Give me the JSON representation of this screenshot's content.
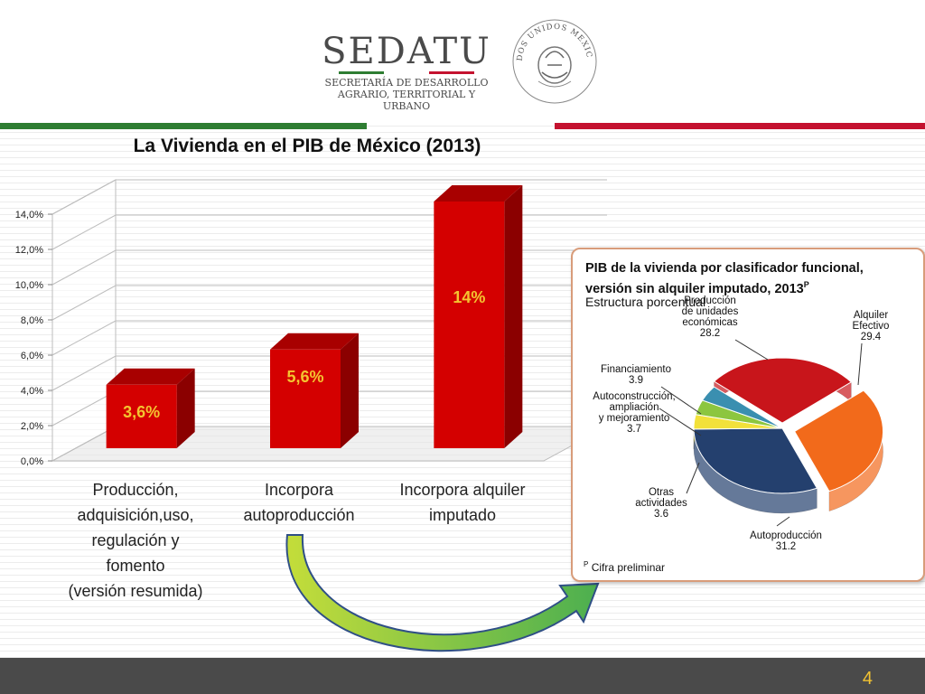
{
  "header": {
    "logo_name": "SEDATU",
    "logo_line1": "SECRETARÍA DE DESARROLLO",
    "logo_line2": "AGRARIO, TERRITORIAL Y URBANO",
    "seal_text": "ESTADOS UNIDOS MEXICANOS"
  },
  "colors": {
    "green": "#2e7d32",
    "red": "#c4122f",
    "bar": "#d40000",
    "bar_label": "#f4c430"
  },
  "page_number": "4",
  "chart_data": [
    {
      "type": "bar",
      "title": "La Vivienda en el PIB de México (2013)",
      "categories": [
        "Producción, adquisición,uso, regulación y fomento (versión resumida)",
        "Incorpora autoproducción",
        "Incorpora alquiler imputado"
      ],
      "category_lines": [
        [
          "Producción,",
          "adquisición,uso,",
          "regulación y",
          "fomento",
          "(versión resumida)"
        ],
        [
          "Incorpora",
          "autoproducción"
        ],
        [
          "Incorpora alquiler",
          "imputado"
        ]
      ],
      "values": [
        3.6,
        5.6,
        14
      ],
      "data_labels": [
        "3,6%",
        "5,6%",
        "14%"
      ],
      "yticks": [
        "0,0%",
        "2,0%",
        "4,0%",
        "6,0%",
        "8,0%",
        "10,0%",
        "12,0%",
        "14,0%"
      ],
      "ylim": [
        0,
        14
      ],
      "grid": true,
      "legend": "none"
    },
    {
      "type": "pie",
      "title": "PIB de la vivienda por clasificador funcional, versión sin alquiler imputado, 2013",
      "title_superscript": "P",
      "subtitle": "Estructura porcentual",
      "note": "Cifra preliminar",
      "note_marker": "P",
      "slices": [
        {
          "lines": [
            "Producción",
            "de unidades",
            "económicas"
          ],
          "value": 28.2,
          "value_label": "28.2",
          "color": "#c8151b"
        },
        {
          "lines": [
            "Alquiler",
            "Efectivo"
          ],
          "value": 29.4,
          "value_label": "29.4",
          "color": "#f26a1b"
        },
        {
          "lines": [
            "Autoproducción"
          ],
          "value": 31.2,
          "value_label": "31.2",
          "color": "#24406e"
        },
        {
          "lines": [
            "Otras",
            "actividades"
          ],
          "value": 3.6,
          "value_label": "3.6",
          "color": "#f2e13a"
        },
        {
          "lines": [
            "Autoconstrucción,",
            "ampliación",
            "y mejoramiento"
          ],
          "value": 3.7,
          "value_label": "3.7",
          "color": "#8cc63f"
        },
        {
          "lines": [
            "Financiamiento"
          ],
          "value": 3.9,
          "value_label": "3.9",
          "color": "#3a8fb0"
        }
      ]
    }
  ]
}
